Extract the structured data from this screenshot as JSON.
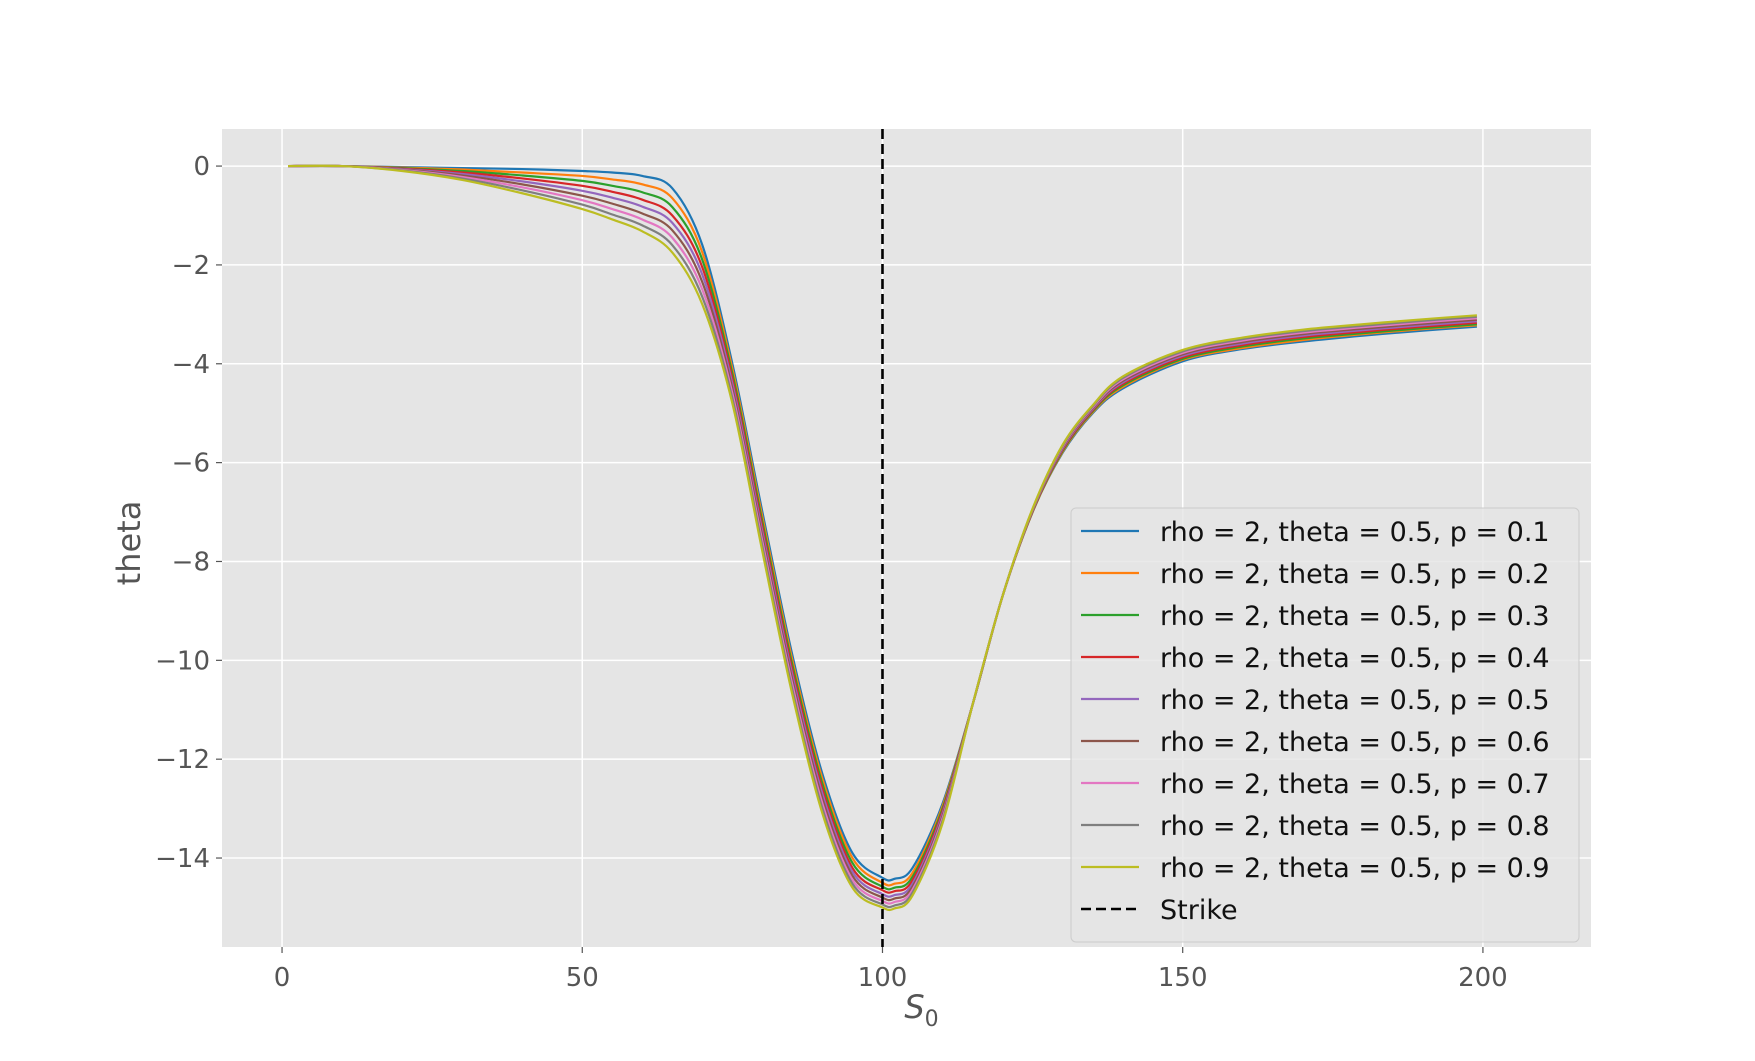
{
  "chart_data": {
    "type": "line",
    "xlabel": "S",
    "xlabel_sub": "0",
    "ylabel": "theta",
    "xlim": [
      -10,
      218
    ],
    "ylim": [
      -15.8,
      0.75
    ],
    "xticks": [
      0,
      50,
      100,
      150,
      200
    ],
    "yticks": [
      0,
      -2,
      -4,
      -6,
      -8,
      -10,
      -12,
      -14
    ],
    "xtick_labels": [
      "0",
      "50",
      "100",
      "150",
      "200"
    ],
    "ytick_labels": [
      "0",
      "−2",
      "−4",
      "−6",
      "−8",
      "−10",
      "−12",
      "−14"
    ],
    "grid": true,
    "background": "#e5e5e5",
    "legend_position": "lower-right",
    "strike": {
      "x": 100,
      "label": "Strike",
      "color": "#000000",
      "style": "dashed"
    },
    "x": [
      1,
      10,
      20,
      30,
      40,
      50,
      55,
      60,
      65,
      70,
      75,
      80,
      85,
      90,
      95,
      100,
      102,
      105,
      110,
      115,
      120,
      125,
      130,
      135,
      140,
      150,
      160,
      170,
      180,
      190,
      199
    ],
    "series": [
      {
        "name": "rho = 2, theta = 0.5, p = 0.1",
        "color": "#1f77b4",
        "values": [
          0,
          0,
          -0.02,
          -0.04,
          -0.06,
          -0.1,
          -0.13,
          -0.2,
          -0.45,
          -1.6,
          -4.0,
          -7.0,
          -9.9,
          -12.3,
          -13.9,
          -14.4,
          -14.42,
          -14.2,
          -12.9,
          -10.9,
          -8.7,
          -7.0,
          -5.8,
          -5.0,
          -4.5,
          -3.95,
          -3.7,
          -3.55,
          -3.43,
          -3.33,
          -3.25
        ]
      },
      {
        "name": "rho = 2, theta = 0.5, p = 0.2",
        "color": "#ff7f0e",
        "values": [
          0,
          0,
          -0.03,
          -0.07,
          -0.13,
          -0.2,
          -0.27,
          -0.37,
          -0.65,
          -1.75,
          -4.1,
          -7.1,
          -10.0,
          -12.4,
          -14.0,
          -14.5,
          -14.52,
          -14.3,
          -12.95,
          -10.9,
          -8.7,
          -7.0,
          -5.78,
          -4.98,
          -4.47,
          -3.92,
          -3.68,
          -3.52,
          -3.4,
          -3.3,
          -3.22
        ]
      },
      {
        "name": "rho = 2, theta = 0.5, p = 0.3",
        "color": "#2ca02c",
        "values": [
          0,
          0,
          -0.04,
          -0.1,
          -0.19,
          -0.3,
          -0.4,
          -0.53,
          -0.83,
          -1.9,
          -4.2,
          -7.2,
          -10.1,
          -12.5,
          -14.1,
          -14.58,
          -14.6,
          -14.38,
          -13.0,
          -10.9,
          -8.7,
          -6.99,
          -5.76,
          -4.96,
          -4.44,
          -3.9,
          -3.65,
          -3.49,
          -3.38,
          -3.28,
          -3.2
        ]
      },
      {
        "name": "rho = 2, theta = 0.5, p = 0.4",
        "color": "#d62728",
        "values": [
          0,
          0,
          -0.05,
          -0.13,
          -0.25,
          -0.4,
          -0.52,
          -0.68,
          -1.0,
          -2.05,
          -4.3,
          -7.3,
          -10.2,
          -12.6,
          -14.2,
          -14.65,
          -14.67,
          -14.45,
          -13.05,
          -10.9,
          -8.7,
          -6.98,
          -5.74,
          -4.94,
          -4.41,
          -3.87,
          -3.62,
          -3.46,
          -3.35,
          -3.25,
          -3.17
        ]
      },
      {
        "name": "rho = 2, theta = 0.5, p = 0.5",
        "color": "#9467bd",
        "values": [
          0,
          0,
          -0.06,
          -0.16,
          -0.31,
          -0.5,
          -0.64,
          -0.82,
          -1.15,
          -2.2,
          -4.4,
          -7.4,
          -10.3,
          -12.7,
          -14.28,
          -14.73,
          -14.75,
          -14.52,
          -13.1,
          -10.9,
          -8.7,
          -6.97,
          -5.72,
          -4.92,
          -4.38,
          -3.84,
          -3.59,
          -3.43,
          -3.32,
          -3.22,
          -3.14
        ]
      },
      {
        "name": "rho = 2, theta = 0.5, p = 0.6",
        "color": "#8c564b",
        "values": [
          0,
          0,
          -0.07,
          -0.19,
          -0.37,
          -0.6,
          -0.76,
          -0.96,
          -1.3,
          -2.35,
          -4.5,
          -7.5,
          -10.4,
          -12.8,
          -14.36,
          -14.8,
          -14.82,
          -14.58,
          -13.15,
          -10.9,
          -8.7,
          -6.96,
          -5.7,
          -4.9,
          -4.35,
          -3.81,
          -3.56,
          -3.4,
          -3.29,
          -3.19,
          -3.11
        ]
      },
      {
        "name": "rho = 2, theta = 0.5, p = 0.7",
        "color": "#e377c2",
        "values": [
          0,
          0,
          -0.08,
          -0.22,
          -0.43,
          -0.69,
          -0.87,
          -1.08,
          -1.45,
          -2.5,
          -4.6,
          -7.6,
          -10.5,
          -12.9,
          -14.44,
          -14.87,
          -14.89,
          -14.64,
          -13.2,
          -10.9,
          -8.7,
          -6.95,
          -5.68,
          -4.88,
          -4.32,
          -3.78,
          -3.53,
          -3.37,
          -3.26,
          -3.16,
          -3.08
        ]
      },
      {
        "name": "rho = 2, theta = 0.5, p = 0.8",
        "color": "#7f7f7f",
        "values": [
          0,
          0,
          -0.09,
          -0.25,
          -0.49,
          -0.78,
          -0.98,
          -1.2,
          -1.6,
          -2.65,
          -4.7,
          -7.7,
          -10.6,
          -13.0,
          -14.52,
          -14.94,
          -14.96,
          -14.7,
          -13.25,
          -10.9,
          -8.7,
          -6.94,
          -5.66,
          -4.86,
          -4.29,
          -3.75,
          -3.5,
          -3.34,
          -3.23,
          -3.13,
          -3.05
        ]
      },
      {
        "name": "rho = 2, theta = 0.5, p = 0.9",
        "color": "#bcbd22",
        "values": [
          0,
          0,
          -0.1,
          -0.28,
          -0.55,
          -0.87,
          -1.08,
          -1.32,
          -1.75,
          -2.8,
          -4.8,
          -7.8,
          -10.7,
          -13.1,
          -14.6,
          -15.0,
          -15.02,
          -14.76,
          -13.3,
          -10.9,
          -8.7,
          -6.93,
          -5.64,
          -4.84,
          -4.26,
          -3.72,
          -3.47,
          -3.31,
          -3.2,
          -3.1,
          -3.02
        ]
      }
    ]
  }
}
